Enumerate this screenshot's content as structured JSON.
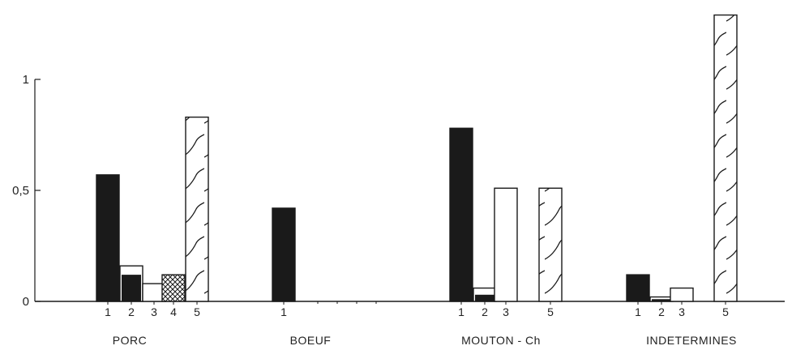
{
  "chart_data": {
    "type": "bar",
    "yticks": [
      "0",
      "0,5",
      "1"
    ],
    "tick_values": [
      0,
      0.5,
      1
    ],
    "ylim": [
      0,
      1.3
    ],
    "groups": [
      {
        "name": "PORC",
        "bars": [
          {
            "label": "1",
            "value": 0.57,
            "pattern": "solid"
          },
          {
            "label": "2",
            "value": 0.16,
            "pattern": "open",
            "inner_value": 0.12
          },
          {
            "label": "3",
            "value": 0.08,
            "pattern": "open"
          },
          {
            "label": "4",
            "value": 0.12,
            "pattern": "crosshatch"
          },
          {
            "label": "5",
            "value": 0.83,
            "pattern": "wave"
          }
        ]
      },
      {
        "name": "BOEUF",
        "bars": [
          {
            "label": "1",
            "value": 0.42,
            "pattern": "solid"
          }
        ]
      },
      {
        "name": "MOUTON - Ch",
        "bars": [
          {
            "label": "1",
            "value": 0.78,
            "pattern": "solid"
          },
          {
            "label": "2",
            "value": 0.06,
            "pattern": "open",
            "inner_value": 0.03
          },
          {
            "label": "3",
            "value": 0.51,
            "pattern": "open"
          },
          {
            "label": "5",
            "value": 0.51,
            "pattern": "wave"
          }
        ]
      },
      {
        "name": "INDETERMINES",
        "bars": [
          {
            "label": "1",
            "value": 0.12,
            "pattern": "solid"
          },
          {
            "label": "2",
            "value": 0.02,
            "pattern": "open",
            "inner_value": 0.01
          },
          {
            "label": "3",
            "value": 0.06,
            "pattern": "open"
          },
          {
            "label": "5",
            "value": 1.29,
            "pattern": "wave"
          }
        ]
      }
    ],
    "colors": {
      "ink": "#1a1a1a",
      "paper": "#ffffff"
    }
  }
}
